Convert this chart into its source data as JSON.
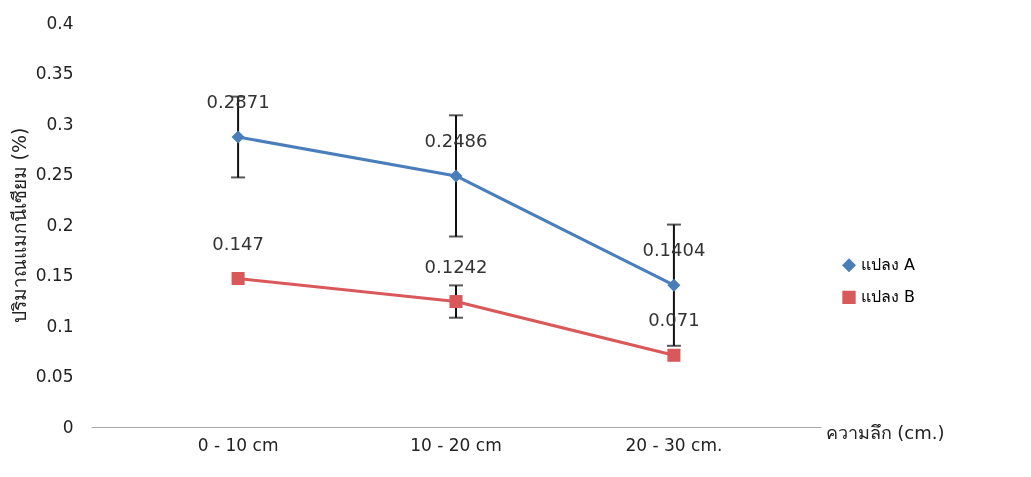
{
  "chart_data": {
    "type": "line",
    "categories": [
      "0 - 10 cm",
      "10 - 20 cm",
      "20 - 30 cm."
    ],
    "xlabel": "ความลึก (cm.)",
    "ylabel": "ปริมาณแมกนีเซียม (%)",
    "series": [
      {
        "name": "แปลง A",
        "color": "#4a7ebb",
        "marker": "diamond",
        "values": [
          0.2871,
          0.2486,
          0.1404
        ],
        "errors": [
          0.04,
          0.06,
          0.06
        ]
      },
      {
        "name": "แปลง B",
        "color": "#d9585a",
        "marker": "square",
        "values": [
          0.147,
          0.1242,
          0.071
        ],
        "errors": [
          null,
          0.016,
          null
        ]
      }
    ],
    "ylim": [
      0,
      0.4
    ],
    "yticks": [
      0,
      0.05,
      0.1,
      0.15,
      0.2,
      0.25,
      0.3,
      0.35,
      0.4
    ],
    "data_labels": true,
    "legend": "right",
    "grid": false
  }
}
